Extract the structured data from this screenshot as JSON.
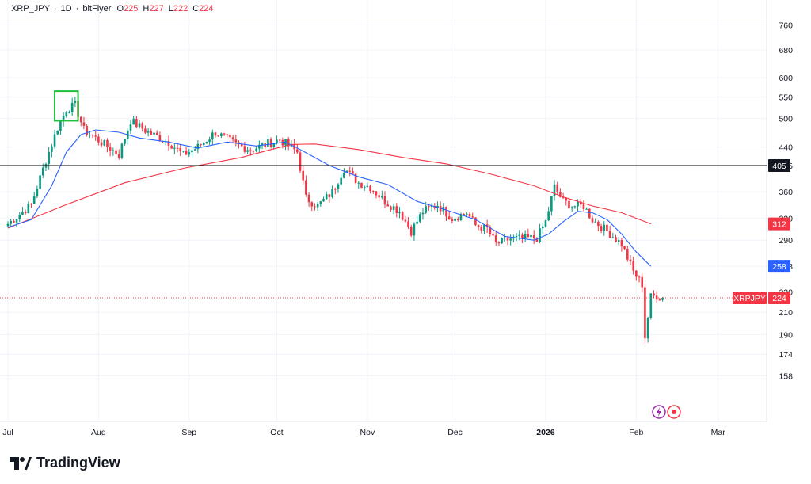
{
  "legend": {
    "symbol": "XRP_JPY",
    "interval": "1D",
    "exchange": "bitFlyer",
    "open_label": "O",
    "open": "225",
    "high_label": "H",
    "high": "227",
    "low_label": "L",
    "low": "222",
    "close_label": "C",
    "close": "224",
    "sep": "·"
  },
  "brand": {
    "name": "TradingView"
  },
  "colors": {
    "up": "#089981",
    "down": "#f23645",
    "ma_fast": "#2962ff",
    "ma_slow": "#f23645",
    "box": "#1fbf3a",
    "line": "#000000"
  },
  "chart_data": {
    "type": "candlestick",
    "scale": "log",
    "y_ticks": [
      760,
      680,
      600,
      550,
      500,
      440,
      405,
      360,
      320,
      290,
      258,
      230,
      210,
      190,
      174,
      158
    ],
    "x_labels": [
      "Jul",
      "Aug",
      "Sep",
      "Oct",
      "Nov",
      "Dec",
      "2026",
      "Feb",
      "Mar"
    ],
    "x_label_dates": [
      "2025-07-01",
      "2025-08-01",
      "2025-09-01",
      "2025-10-01",
      "2025-11-01",
      "2025-12-01",
      "2026-01-01",
      "2026-02-01",
      "2026-03-01"
    ],
    "start_date": "2025-07-01",
    "horizontal_line": {
      "value": 405,
      "label": "405"
    },
    "price_badges": [
      {
        "label": "312",
        "value": 312,
        "color": "#f23645"
      },
      {
        "label": "258",
        "value": 258,
        "color": "#2962ff"
      },
      {
        "symbol": "XRPJPY",
        "label": "224",
        "value": 224,
        "color": "#f23645"
      }
    ],
    "current_price": 224,
    "highlight_box": {
      "from_day": 16,
      "to_day": 24,
      "low": 495,
      "high": 565
    },
    "keypoints": [
      [
        0,
        312
      ],
      [
        8,
        340
      ],
      [
        13,
        415
      ],
      [
        17,
        480
      ],
      [
        20,
        520
      ],
      [
        23,
        530
      ],
      [
        26,
        475
      ],
      [
        29,
        462
      ],
      [
        33,
        445
      ],
      [
        38,
        425
      ],
      [
        42,
        495
      ],
      [
        48,
        470
      ],
      [
        55,
        450
      ],
      [
        60,
        425
      ],
      [
        65,
        440
      ],
      [
        71,
        470
      ],
      [
        78,
        445
      ],
      [
        83,
        435
      ],
      [
        88,
        445
      ],
      [
        93,
        455
      ],
      [
        99,
        430
      ],
      [
        102,
        350
      ],
      [
        106,
        338
      ],
      [
        111,
        360
      ],
      [
        115,
        400
      ],
      [
        120,
        375
      ],
      [
        124,
        368
      ],
      [
        129,
        345
      ],
      [
        134,
        330
      ],
      [
        138,
        302
      ],
      [
        142,
        330
      ],
      [
        147,
        340
      ],
      [
        152,
        320
      ],
      [
        157,
        328
      ],
      [
        160,
        310
      ],
      [
        164,
        305
      ],
      [
        167,
        285
      ],
      [
        172,
        292
      ],
      [
        176,
        292
      ],
      [
        181,
        293
      ],
      [
        184,
        315
      ],
      [
        187,
        368
      ],
      [
        190,
        345
      ],
      [
        193,
        338
      ],
      [
        197,
        338
      ],
      [
        200,
        318
      ],
      [
        205,
        302
      ],
      [
        210,
        285
      ],
      [
        214,
        252
      ],
      [
        217,
        238
      ],
      [
        218,
        188
      ],
      [
        220,
        225
      ],
      [
        222,
        226
      ],
      [
        224,
        224
      ]
    ],
    "ma_fast_points": [
      [
        0,
        307
      ],
      [
        8,
        318
      ],
      [
        15,
        370
      ],
      [
        20,
        430
      ],
      [
        25,
        465
      ],
      [
        30,
        475
      ],
      [
        38,
        470
      ],
      [
        45,
        458
      ],
      [
        55,
        450
      ],
      [
        65,
        438
      ],
      [
        75,
        450
      ],
      [
        85,
        442
      ],
      [
        95,
        450
      ],
      [
        100,
        435
      ],
      [
        110,
        405
      ],
      [
        120,
        385
      ],
      [
        130,
        372
      ],
      [
        140,
        345
      ],
      [
        150,
        332
      ],
      [
        160,
        318
      ],
      [
        170,
        295
      ],
      [
        180,
        290
      ],
      [
        185,
        298
      ],
      [
        190,
        315
      ],
      [
        195,
        330
      ],
      [
        200,
        328
      ],
      [
        205,
        318
      ],
      [
        210,
        298
      ],
      [
        215,
        275
      ],
      [
        220,
        258
      ]
    ],
    "ma_slow_points": [
      [
        0,
        306
      ],
      [
        20,
        340
      ],
      [
        40,
        375
      ],
      [
        60,
        400
      ],
      [
        80,
        420
      ],
      [
        90,
        435
      ],
      [
        97,
        445
      ],
      [
        105,
        446
      ],
      [
        120,
        435
      ],
      [
        135,
        420
      ],
      [
        150,
        408
      ],
      [
        165,
        390
      ],
      [
        180,
        370
      ],
      [
        190,
        352
      ],
      [
        200,
        338
      ],
      [
        210,
        328
      ],
      [
        220,
        312
      ]
    ],
    "last_day": 224
  }
}
